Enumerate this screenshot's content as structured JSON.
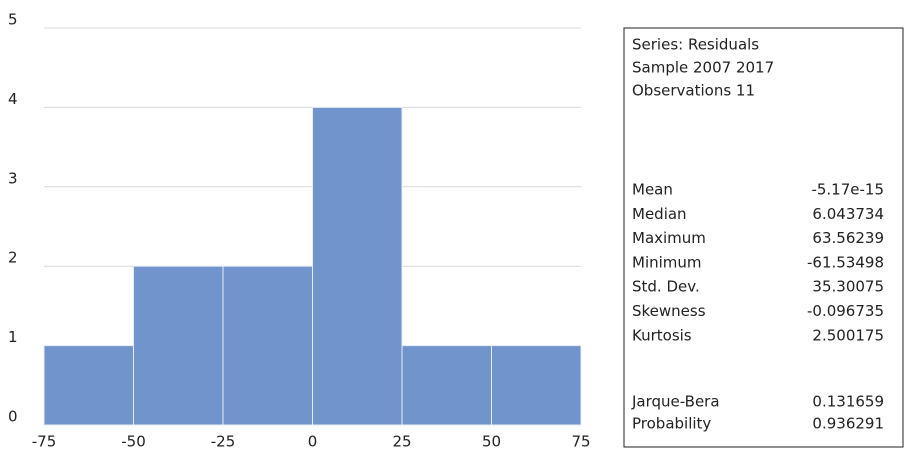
{
  "chart_data": {
    "type": "histogram",
    "bins": [
      -75,
      -50,
      -25,
      0,
      25,
      50,
      75
    ],
    "values": [
      1,
      2,
      2,
      4,
      1,
      1
    ],
    "color": "#7294cc",
    "xlim": [
      -75,
      75
    ],
    "xticks": [
      -75,
      -50,
      -25,
      0,
      25,
      50,
      75
    ],
    "ylim": [
      0,
      5
    ],
    "yticks": [
      0,
      1,
      2,
      3,
      4,
      5
    ],
    "grid": true,
    "stats": {
      "header": [
        "Series: Residuals",
        "Sample 2007 2017",
        "Observations 11"
      ],
      "rows": [
        [
          "Mean",
          -5.17e-15
        ],
        [
          "Median",
          6.043734
        ],
        [
          "Maximum",
          63.56239
        ],
        [
          "Minimum",
          -61.53498
        ],
        [
          "Std. Dev.",
          35.30075
        ],
        [
          "Skewness",
          -0.096735
        ],
        [
          "Kurtosis",
          2.500175
        ]
      ],
      "tests": [
        [
          "Jarque-Bera",
          0.131659
        ],
        [
          "Probability",
          0.936291
        ]
      ]
    }
  }
}
